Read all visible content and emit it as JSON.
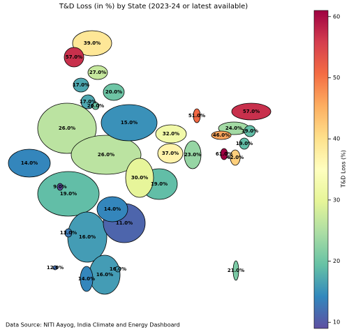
{
  "chart_data": {
    "type": "choropleth",
    "title": "T&D Loss (in %) by State (2023-24 or latest available)",
    "colorbar_label": "T&D Loss (%)",
    "note": "Data Source: NITI Aayog, India Climate and Energy Dashboard",
    "clim": [
      9,
      61
    ],
    "cticks": [
      10,
      20,
      30,
      40,
      50,
      60
    ],
    "colormap": [
      "#5e4fa2",
      "#3288bd",
      "#66c2a5",
      "#abdda4",
      "#e6f598",
      "#ffffbf",
      "#fee08b",
      "#fdae61",
      "#f46d43",
      "#d53e4f",
      "#9e0142"
    ],
    "values": [
      39,
      57,
      27,
      17,
      20,
      17,
      20,
      26,
      15,
      51,
      57,
      24,
      19,
      46,
      32,
      19,
      61,
      42,
      14,
      26,
      37,
      23,
      30,
      19,
      9,
      19,
      14,
      11,
      13,
      16,
      12,
      16,
      16,
      14,
      21
    ],
    "value_labels": [
      "39.0%",
      "57.0%",
      "27.0%",
      "17.0%",
      "20.0%",
      "17.0%",
      "20.0%",
      "26.0%",
      "15.0%",
      "51.0%",
      "57.0%",
      "24.0%",
      "19.0%",
      "46.0%",
      "32.0%",
      "19.0%",
      "61.0%",
      "42.0%",
      "14.0%",
      "26.0%",
      "37.0%",
      "23.0%",
      "30.0%",
      "19.0%",
      "9.0%",
      "19.0%",
      "14.0%",
      "11.0%",
      "13.0%",
      "16.0%",
      "12.0%",
      "16.0%",
      "16.0%",
      "14.0%",
      "21.0%"
    ]
  }
}
